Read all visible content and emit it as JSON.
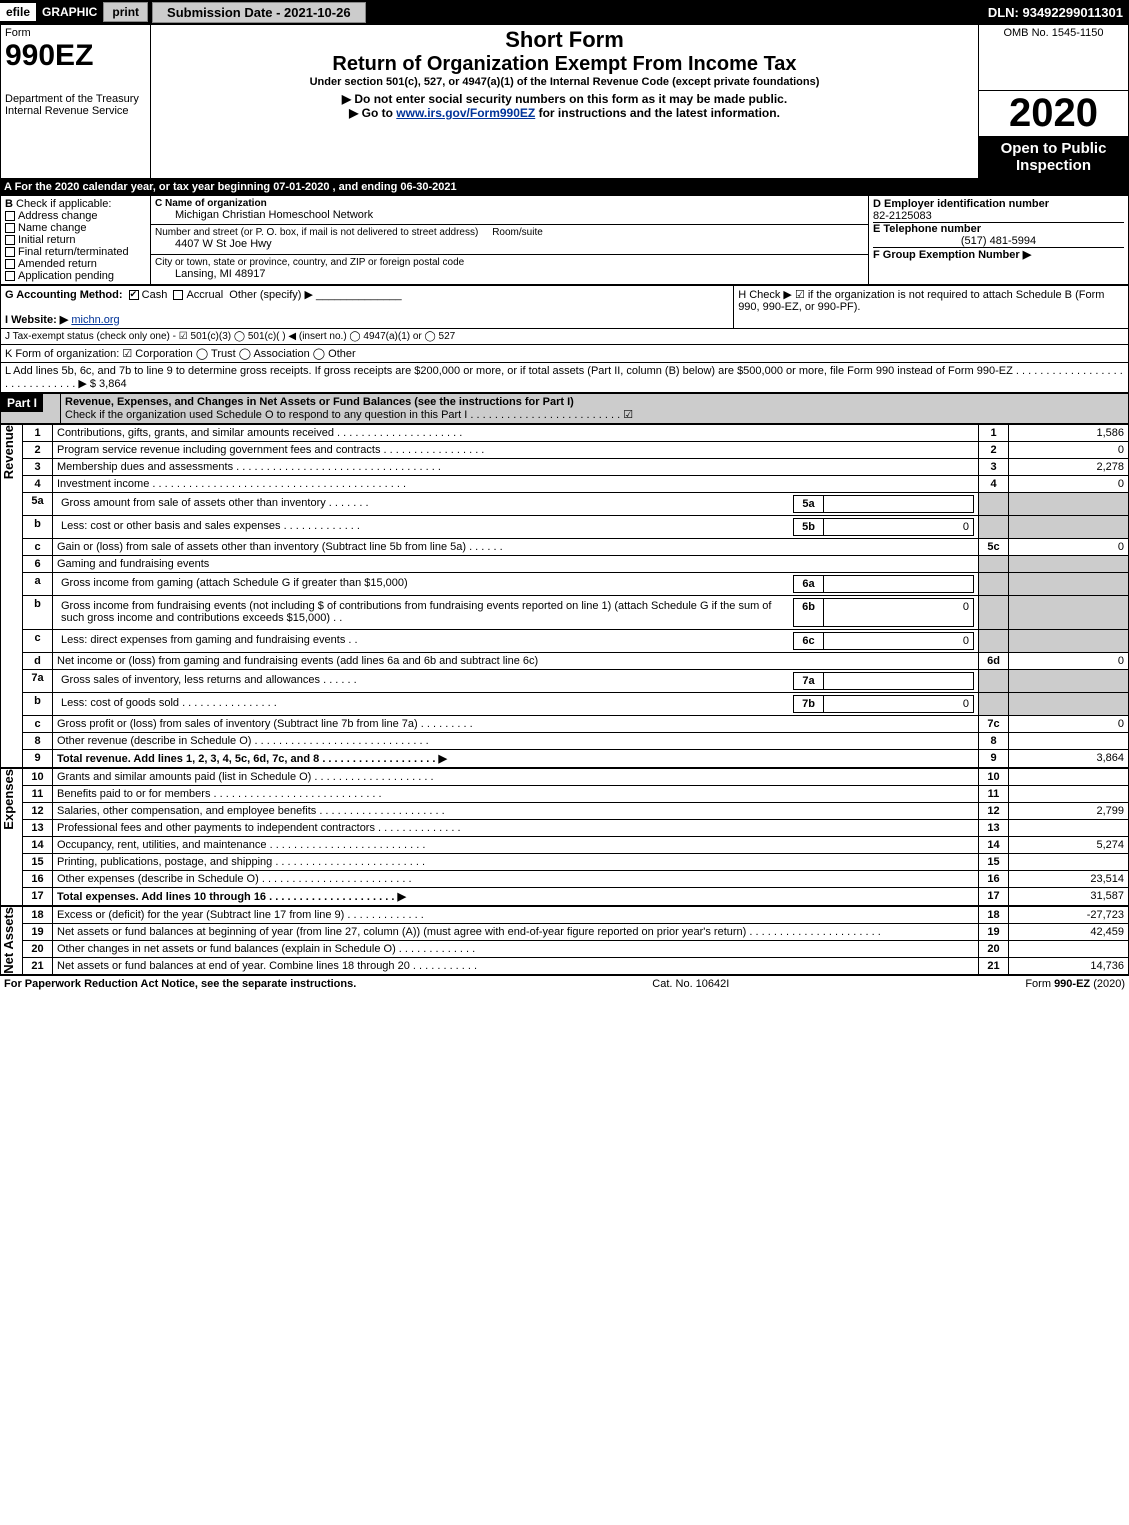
{
  "topbar": {
    "efile": "efile",
    "graphic": "GRAPHIC",
    "print": "print",
    "subdate": "Submission Date - 2021-10-26",
    "dln": "DLN: 93492299011301"
  },
  "header": {
    "form_label": "Form",
    "form_number": "990EZ",
    "dept": "Department of the Treasury\nInternal Revenue Service",
    "short_form": "Short Form",
    "title": "Return of Organization Exempt From Income Tax",
    "under_section": "Under section 501(c), 527, or 4947(a)(1) of the Internal Revenue Code (except private foundations)",
    "line1": "▶ Do not enter social security numbers on this form as it may be made public.",
    "line2_prefix": "▶ Go to ",
    "line2_link": "www.irs.gov/Form990EZ",
    "line2_suffix": " for instructions and the latest information.",
    "omb": "OMB No. 1545-1150",
    "year": "2020",
    "open_public": "Open to Public Inspection"
  },
  "line_a": "A For the 2020 calendar year, or tax year beginning 07-01-2020 , and ending 06-30-2021",
  "box_b": {
    "label": "B",
    "check_label": "Check if applicable:",
    "opts": [
      "Address change",
      "Name change",
      "Initial return",
      "Final return/terminated",
      "Amended return",
      "Application pending"
    ]
  },
  "box_c": {
    "c_label": "C Name of organization",
    "org_name": "Michigan Christian Homeschool Network",
    "addr_label": "Number and street (or P. O. box, if mail is not delivered to street address)",
    "room_label": "Room/suite",
    "addr": "4407 W St Joe Hwy",
    "city_label": "City or town, state or province, country, and ZIP or foreign postal code",
    "city": "Lansing, MI  48917"
  },
  "box_d": {
    "label": "D Employer identification number",
    "ein": "82-2125083",
    "e_label": "E Telephone number",
    "phone": "(517) 481-5994",
    "f_label": "F Group Exemption Number ▶"
  },
  "box_g": {
    "label": "G Accounting Method:",
    "cash": "Cash",
    "accrual": "Accrual",
    "other": "Other (specify) ▶"
  },
  "box_h": "H  Check ▶ ☑ if the organization is not required to attach Schedule B (Form 990, 990-EZ, or 990-PF).",
  "box_i": {
    "label": "I Website: ▶",
    "site": "michn.org"
  },
  "box_j": "J Tax-exempt status (check only one) - ☑ 501(c)(3)  ◯ 501(c)(  ) ◀ (insert no.)  ◯ 4947(a)(1) or  ◯ 527",
  "box_k": "K Form of organization:  ☑ Corporation   ◯ Trust   ◯ Association   ◯ Other",
  "box_l": {
    "text": "L Add lines 5b, 6c, and 7b to line 9 to determine gross receipts. If gross receipts are $200,000 or more, or if total assets (Part II, column (B) below) are $500,000 or more, file Form 990 instead of Form 990-EZ . . . . . . . . . . . . . . . . . . . . . . . . . . . . . . ▶ $ ",
    "amount": "3,864"
  },
  "part1": {
    "header": "Part I",
    "title": "Revenue, Expenses, and Changes in Net Assets or Fund Balances (see the instructions for Part I)",
    "sub": "Check if the organization used Schedule O to respond to any question in this Part I . . . . . . . . . . . . . . . . . . . . . . . . . ☑"
  },
  "sections": {
    "revenue": "Revenue",
    "expenses": "Expenses",
    "netassets": "Net Assets"
  },
  "rows": [
    {
      "n": "1",
      "d": "Contributions, gifts, grants, and similar amounts received . . . . . . . . . . . . . . . . . . . . .",
      "r": "1",
      "a": "1,586"
    },
    {
      "n": "2",
      "d": "Program service revenue including government fees and contracts . . . . . . . . . . . . . . . . .",
      "r": "2",
      "a": "0"
    },
    {
      "n": "3",
      "d": "Membership dues and assessments . . . . . . . . . . . . . . . . . . . . . . . . . . . . . . . . . .",
      "r": "3",
      "a": "2,278"
    },
    {
      "n": "4",
      "d": "Investment income . . . . . . . . . . . . . . . . . . . . . . . . . . . . . . . . . . . . . . . . . .",
      "r": "4",
      "a": "0"
    },
    {
      "n": "5a",
      "d": "Gross amount from sale of assets other than inventory . . . . . . .",
      "sub_r": "5a",
      "sub_a": ""
    },
    {
      "n": "b",
      "d": "Less: cost or other basis and sales expenses . . . . . . . . . . . . .",
      "sub_r": "5b",
      "sub_a": "0"
    },
    {
      "n": "c",
      "d": "Gain or (loss) from sale of assets other than inventory (Subtract line 5b from line 5a) . . . . . .",
      "r": "5c",
      "a": "0"
    },
    {
      "n": "6",
      "d": "Gaming and fundraising events"
    },
    {
      "n": "a",
      "d": "Gross income from gaming (attach Schedule G if greater than $15,000)",
      "sub_r": "6a",
      "sub_a": ""
    },
    {
      "n": "b",
      "d": "Gross income from fundraising events (not including $                       of contributions from fundraising events reported on line 1) (attach Schedule G if the sum of such gross income and contributions exceeds $15,000)      . .",
      "sub_r": "6b",
      "sub_a": "0"
    },
    {
      "n": "c",
      "d": "Less: direct expenses from gaming and fundraising events      . .",
      "sub_r": "6c",
      "sub_a": "0"
    },
    {
      "n": "d",
      "d": "Net income or (loss) from gaming and fundraising events (add lines 6a and 6b and subtract line 6c)",
      "r": "6d",
      "a": "0"
    },
    {
      "n": "7a",
      "d": "Gross sales of inventory, less returns and allowances . . . . . .",
      "sub_r": "7a",
      "sub_a": ""
    },
    {
      "n": "b",
      "d": "Less: cost of goods sold           . . . . . . . . . . . . . . . .",
      "sub_r": "7b",
      "sub_a": "0"
    },
    {
      "n": "c",
      "d": "Gross profit or (loss) from sales of inventory (Subtract line 7b from line 7a) . . . . . . . . .",
      "r": "7c",
      "a": "0"
    },
    {
      "n": "8",
      "d": "Other revenue (describe in Schedule O) . . . . . . . . . . . . . . . . . . . . . . . . . . . . .",
      "r": "8",
      "a": ""
    },
    {
      "n": "9",
      "d": "Total revenue. Add lines 1, 2, 3, 4, 5c, 6d, 7c, and 8  . . . . . . . . . . . . . . . . . . . ▶",
      "r": "9",
      "a": "3,864",
      "bold": true
    }
  ],
  "exp_rows": [
    {
      "n": "10",
      "d": "Grants and similar amounts paid (list in Schedule O) . . . . . . . . . . . . . . . . . . . .",
      "r": "10",
      "a": ""
    },
    {
      "n": "11",
      "d": "Benefits paid to or for members      . . . . . . . . . . . . . . . . . . . . . . . . . . . .",
      "r": "11",
      "a": ""
    },
    {
      "n": "12",
      "d": "Salaries, other compensation, and employee benefits . . . . . . . . . . . . . . . . . . . . .",
      "r": "12",
      "a": "2,799"
    },
    {
      "n": "13",
      "d": "Professional fees and other payments to independent contractors . . . . . . . . . . . . . .",
      "r": "13",
      "a": ""
    },
    {
      "n": "14",
      "d": "Occupancy, rent, utilities, and maintenance . . . . . . . . . . . . . . . . . . . . . . . . . .",
      "r": "14",
      "a": "5,274"
    },
    {
      "n": "15",
      "d": "Printing, publications, postage, and shipping . . . . . . . . . . . . . . . . . . . . . . . . .",
      "r": "15",
      "a": ""
    },
    {
      "n": "16",
      "d": "Other expenses (describe in Schedule O)     . . . . . . . . . . . . . . . . . . . . . . . . .",
      "r": "16",
      "a": "23,514"
    },
    {
      "n": "17",
      "d": "Total expenses. Add lines 10 through 16     . . . . . . . . . . . . . . . . . . . . . ▶",
      "r": "17",
      "a": "31,587",
      "bold": true
    }
  ],
  "na_rows": [
    {
      "n": "18",
      "d": "Excess or (deficit) for the year (Subtract line 17 from line 9)         . . . . . . . . . . . . .",
      "r": "18",
      "a": "-27,723"
    },
    {
      "n": "19",
      "d": "Net assets or fund balances at beginning of year (from line 27, column (A)) (must agree with end-of-year figure reported on prior year's return) . . . . . . . . . . . . . . . . . . . . . .",
      "r": "19",
      "a": "42,459"
    },
    {
      "n": "20",
      "d": "Other changes in net assets or fund balances (explain in Schedule O) . . . . . . . . . . . . .",
      "r": "20",
      "a": ""
    },
    {
      "n": "21",
      "d": "Net assets or fund balances at end of year. Combine lines 18 through 20 . . . . . . . . . . .",
      "r": "21",
      "a": "14,736"
    }
  ],
  "footer": {
    "left": "For Paperwork Reduction Act Notice, see the separate instructions.",
    "mid": "Cat. No. 10642I",
    "right": "Form 990-EZ (2020)"
  }
}
